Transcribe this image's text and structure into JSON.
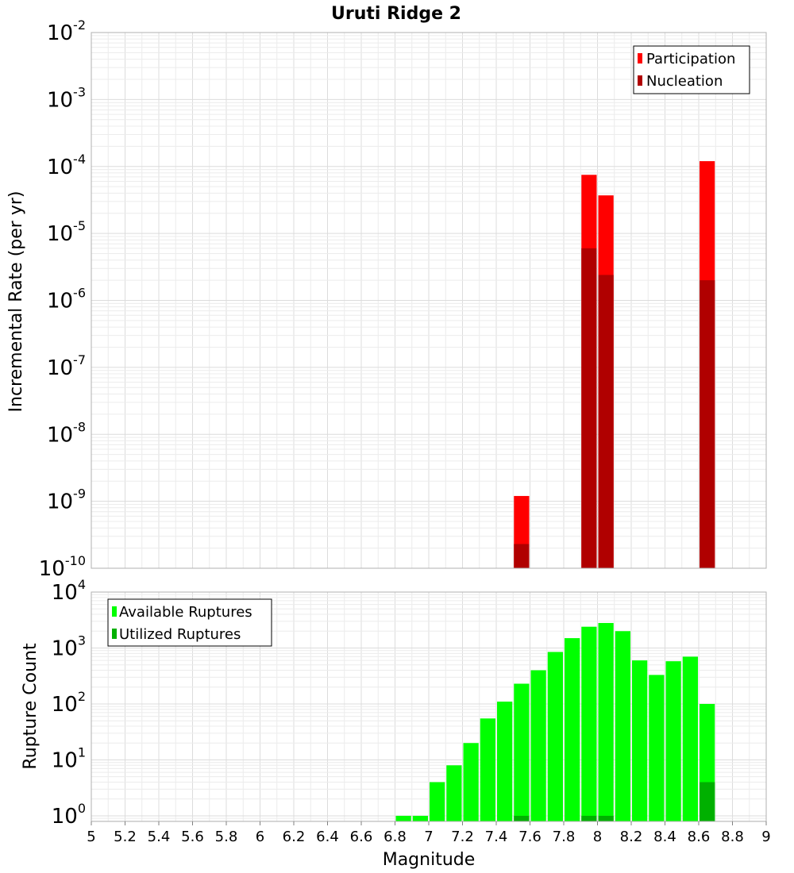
{
  "colors": {
    "participation": "#ff0000",
    "nucleation": "#b00000",
    "available": "#00ff00",
    "utilized": "#00b000"
  },
  "chart_data": [
    {
      "id": "rate",
      "type": "bar",
      "title": "Uruti Ridge 2",
      "xlabel": "",
      "ylabel": "Incremental Rate (per yr)",
      "yscale": "log",
      "ylim_exp": [
        -10,
        -2
      ],
      "xlim": [
        5,
        9
      ],
      "bin_width": 0.1,
      "legend_position": "top-right",
      "series": [
        {
          "name": "Participation",
          "x": [
            7.55,
            7.95,
            8.05,
            8.65
          ],
          "values": [
            1.2e-09,
            7.5e-05,
            3.7e-05,
            0.00012
          ]
        },
        {
          "name": "Nucleation",
          "x": [
            7.55,
            7.95,
            8.05,
            8.65
          ],
          "values": [
            2.3e-10,
            6e-06,
            2.4e-06,
            2e-06
          ]
        }
      ],
      "ytick_labels": [
        {
          "base": "10",
          "exp": "-10"
        },
        {
          "base": "10",
          "exp": "-9"
        },
        {
          "base": "10",
          "exp": "-8"
        },
        {
          "base": "10",
          "exp": "-7"
        },
        {
          "base": "10",
          "exp": "-6"
        },
        {
          "base": "10",
          "exp": "-5"
        },
        {
          "base": "10",
          "exp": "-4"
        },
        {
          "base": "10",
          "exp": "-3"
        },
        {
          "base": "10",
          "exp": "-2"
        }
      ]
    },
    {
      "id": "count",
      "type": "bar",
      "title": "",
      "xlabel": "Magnitude",
      "ylabel": "Rupture Count",
      "yscale": "log",
      "ylim_exp": [
        -0.1,
        4
      ],
      "xlim": [
        5,
        9
      ],
      "bin_width": 0.1,
      "legend_position": "top-left",
      "series": [
        {
          "name": "Available Ruptures",
          "x": [
            6.85,
            6.95,
            7.05,
            7.15,
            7.25,
            7.35,
            7.45,
            7.55,
            7.65,
            7.75,
            7.85,
            7.95,
            8.05,
            8.15,
            8.25,
            8.35,
            8.45,
            8.55,
            8.65
          ],
          "values": [
            1,
            1,
            4,
            8,
            20,
            55,
            110,
            230,
            400,
            850,
            1500,
            2400,
            2800,
            2000,
            600,
            330,
            580,
            700,
            100
          ]
        },
        {
          "name": "Utilized Ruptures",
          "x": [
            7.55,
            7.95,
            8.05,
            8.65
          ],
          "values": [
            1,
            1,
            1,
            4
          ]
        }
      ],
      "ytick_labels": [
        {
          "base": "10",
          "exp": "0"
        },
        {
          "base": "10",
          "exp": "1"
        },
        {
          "base": "10",
          "exp": "2"
        },
        {
          "base": "10",
          "exp": "3"
        },
        {
          "base": "10",
          "exp": "4"
        }
      ],
      "xtick_labels": [
        "5",
        "5.2",
        "5.4",
        "5.6",
        "5.8",
        "6",
        "6.2",
        "6.4",
        "6.6",
        "6.8",
        "7",
        "7.2",
        "7.4",
        "7.6",
        "7.8",
        "8",
        "8.2",
        "8.4",
        "8.6",
        "8.8",
        "9"
      ]
    }
  ]
}
